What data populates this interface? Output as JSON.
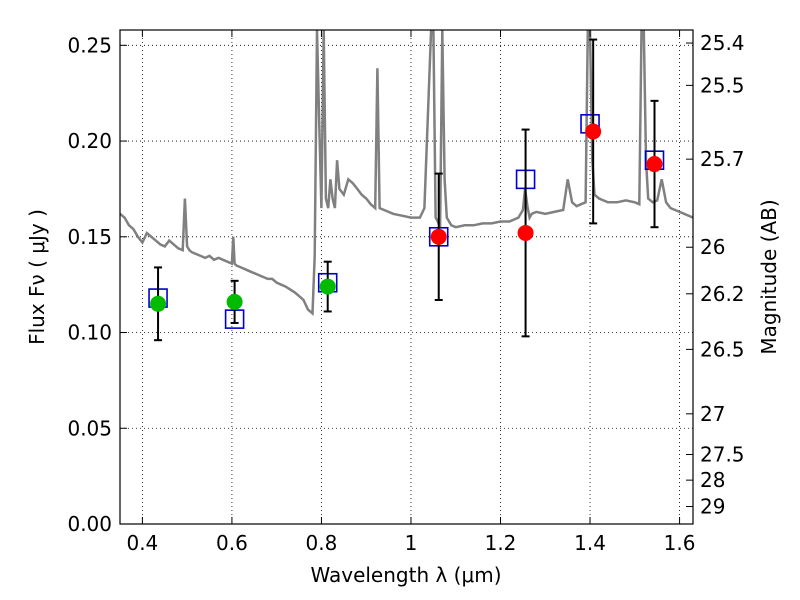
{
  "chart_data": {
    "type": "scatter",
    "xlabel": "Wavelength  λ (μm)",
    "ylabel": "Flux  Fν  ( μJy )",
    "ylabel_right": "Magnitude (AB)",
    "xlim": [
      0.35,
      1.63
    ],
    "ylim": [
      0.0,
      0.258
    ],
    "grid": true,
    "x_ticks": [
      0.4,
      0.6,
      0.8,
      1.0,
      1.2,
      1.4,
      1.6
    ],
    "x_tick_labels": [
      "0.4",
      "0.6",
      "0.8",
      "1",
      "1.2",
      "1.4",
      "1.6"
    ],
    "y_ticks": [
      0.0,
      0.05,
      0.1,
      0.15,
      0.2,
      0.25
    ],
    "y_tick_labels": [
      "0.00",
      "0.05",
      "0.10",
      "0.15",
      "0.20",
      "0.25"
    ],
    "mag_ticks": [
      "25.4",
      "25.5",
      "25.7",
      "26",
      "26.2",
      "26.5",
      "27",
      "27.5",
      "28",
      "29"
    ],
    "series": [
      {
        "name": "",
        "kind": "model_spectrum",
        "color": "#808080",
        "x": [
          0.35,
          0.36,
          0.37,
          0.38,
          0.39,
          0.4,
          0.41,
          0.42,
          0.43,
          0.44,
          0.45,
          0.46,
          0.47,
          0.48,
          0.49,
          0.495,
          0.5,
          0.505,
          0.51,
          0.52,
          0.53,
          0.54,
          0.55,
          0.56,
          0.57,
          0.58,
          0.59,
          0.6,
          0.603,
          0.606,
          0.61,
          0.62,
          0.63,
          0.64,
          0.65,
          0.66,
          0.67,
          0.68,
          0.69,
          0.7,
          0.72,
          0.74,
          0.75,
          0.76,
          0.77,
          0.78,
          0.785,
          0.79,
          0.795,
          0.8,
          0.805,
          0.81,
          0.815,
          0.82,
          0.825,
          0.83,
          0.835,
          0.84,
          0.85,
          0.86,
          0.87,
          0.88,
          0.89,
          0.9,
          0.91,
          0.92,
          0.925,
          0.93,
          0.94,
          0.95,
          0.96,
          0.98,
          1.0,
          1.02,
          1.03,
          1.045,
          1.05,
          1.055,
          1.06,
          1.065,
          1.07,
          1.075,
          1.08,
          1.09,
          1.1,
          1.12,
          1.14,
          1.16,
          1.18,
          1.2,
          1.22,
          1.24,
          1.25,
          1.255,
          1.26,
          1.265,
          1.27,
          1.28,
          1.3,
          1.32,
          1.34,
          1.35,
          1.36,
          1.37,
          1.38,
          1.39,
          1.395,
          1.4,
          1.405,
          1.41,
          1.42,
          1.44,
          1.46,
          1.48,
          1.5,
          1.51,
          1.515,
          1.52,
          1.525,
          1.53,
          1.54,
          1.55,
          1.56,
          1.57,
          1.58,
          1.6,
          1.63
        ],
        "y": [
          0.162,
          0.16,
          0.156,
          0.154,
          0.15,
          0.147,
          0.152,
          0.15,
          0.148,
          0.146,
          0.145,
          0.148,
          0.146,
          0.144,
          0.143,
          0.17,
          0.145,
          0.143,
          0.142,
          0.141,
          0.14,
          0.139,
          0.14,
          0.138,
          0.139,
          0.138,
          0.137,
          0.136,
          0.15,
          0.136,
          0.135,
          0.134,
          0.133,
          0.132,
          0.131,
          0.13,
          0.129,
          0.128,
          0.128,
          0.126,
          0.124,
          0.121,
          0.119,
          0.117,
          0.112,
          0.11,
          0.14,
          0.258,
          0.21,
          0.165,
          0.258,
          0.17,
          0.165,
          0.18,
          0.17,
          0.165,
          0.19,
          0.175,
          0.172,
          0.18,
          0.178,
          0.175,
          0.172,
          0.17,
          0.167,
          0.165,
          0.238,
          0.165,
          0.164,
          0.163,
          0.162,
          0.161,
          0.16,
          0.16,
          0.165,
          0.258,
          0.258,
          0.16,
          0.158,
          0.155,
          0.258,
          0.18,
          0.16,
          0.156,
          0.155,
          0.156,
          0.156,
          0.157,
          0.157,
          0.158,
          0.158,
          0.16,
          0.164,
          0.175,
          0.166,
          0.16,
          0.162,
          0.163,
          0.162,
          0.163,
          0.164,
          0.18,
          0.168,
          0.166,
          0.167,
          0.168,
          0.258,
          0.258,
          0.19,
          0.172,
          0.17,
          0.168,
          0.168,
          0.169,
          0.168,
          0.167,
          0.258,
          0.258,
          0.19,
          0.17,
          0.168,
          0.169,
          0.18,
          0.168,
          0.165,
          0.163,
          0.16
        ]
      },
      {
        "name": "",
        "kind": "model_photometry",
        "color": "#0000cc",
        "x": [
          0.435,
          0.606,
          0.814,
          1.062,
          1.256,
          1.4,
          1.544
        ],
        "y": [
          0.118,
          0.107,
          0.126,
          0.15,
          0.18,
          0.209,
          0.19
        ]
      },
      {
        "name": "",
        "kind": "observed",
        "color": "#00bb00",
        "x": [
          0.435,
          0.606,
          0.814
        ],
        "y": [
          0.115,
          0.116,
          0.124
        ],
        "yerr": [
          0.019,
          0.011,
          0.013
        ]
      },
      {
        "name": "",
        "kind": "observed",
        "color": "#ff0000",
        "x": [
          1.062,
          1.256,
          1.407,
          1.544
        ],
        "y": [
          0.15,
          0.152,
          0.205,
          0.188
        ],
        "yerr": [
          0.033,
          0.054,
          0.048,
          0.033
        ]
      }
    ]
  }
}
